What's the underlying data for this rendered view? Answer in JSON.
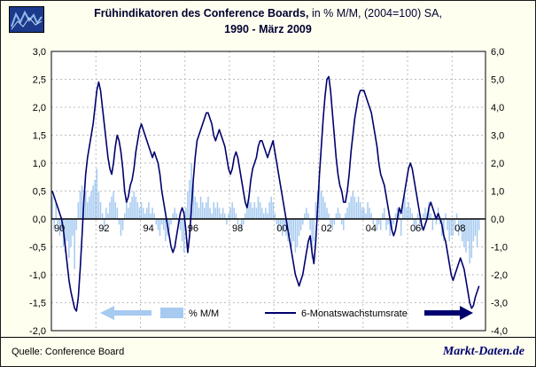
{
  "title": {
    "part1_bold": "Frühindikatoren des Conference Boards,",
    "part1_rest": " in % M/M, (2004=100) SA,",
    "line2": "1990 - März 2009"
  },
  "footer": {
    "source_label": "Quelle: Conference Board",
    "brand": "Markt-Daten.de"
  },
  "logo": {
    "icon": "line-chart-logo-icon"
  },
  "colors": {
    "background": "#fffff0",
    "plot_background": "#ffffff",
    "bar": "#a6caf0",
    "line": "#00006e",
    "grid": "#bcbcbc",
    "zero_line": "#000000",
    "axis_text": "#000000",
    "brand_text": "#00006e"
  },
  "chart_data": {
    "type": "combo",
    "title": "Frühindikatoren des Conference Boards, in % M/M, (2004=100) SA, 1990 - März 2009",
    "start": "1990-01",
    "end": "2009-03",
    "frequency": "monthly",
    "grid": true,
    "legend_position": "bottom-inside",
    "left_axis": {
      "min": -2.0,
      "max": 3.0,
      "tick_values": [
        3.0,
        2.5,
        2.0,
        1.5,
        1.0,
        0.5,
        0.0,
        -0.5,
        -1.0,
        -1.5,
        -2.0
      ],
      "tick_labels": [
        "3,0",
        "2,5",
        "2,0",
        "1,5",
        "1,0",
        "0,5",
        "0,0",
        "-0,5",
        "-1,0",
        "-1,5",
        "-2,0"
      ]
    },
    "right_axis": {
      "min": -4.0,
      "max": 6.0,
      "tick_values": [
        6.0,
        5.0,
        4.0,
        3.0,
        2.0,
        1.0,
        0.0,
        -1.0,
        -2.0,
        -3.0,
        -4.0
      ],
      "tick_labels": [
        "6,0",
        "5,0",
        "4,0",
        "3,0",
        "2,0",
        "1,0",
        "0,0",
        "-1,0",
        "-2,0",
        "-3,0",
        "-4,0"
      ]
    },
    "x_tick_labels": [
      "90",
      "92",
      "94",
      "96",
      "98",
      "00",
      "02",
      "04",
      "06",
      "08"
    ],
    "x_tick_years": [
      1990,
      1992,
      1994,
      1996,
      1998,
      2000,
      2002,
      2004,
      2006,
      2008
    ],
    "series": [
      {
        "name": "% M/M",
        "type": "bar",
        "axis": "left",
        "values": [
          0.4,
          -0.2,
          0.3,
          -0.1,
          -0.3,
          -0.2,
          -0.5,
          -0.6,
          -0.4,
          -0.7,
          -0.5,
          -0.3,
          -0.9,
          -0.2,
          0.3,
          0.5,
          0.6,
          0.4,
          0.5,
          0.3,
          0.4,
          0.5,
          0.6,
          0.7,
          0.9,
          0.5,
          0.3,
          0.1,
          -0.2,
          0.2,
          0.1,
          0.3,
          0.4,
          0.5,
          0.3,
          0.2,
          -0.1,
          -0.3,
          -0.2,
          0.1,
          0.3,
          0.2,
          0.3,
          0.4,
          0.5,
          0.4,
          0.3,
          0.2,
          0.3,
          0.2,
          0.1,
          0.2,
          0.3,
          0.1,
          0.2,
          0.1,
          -0.1,
          -0.2,
          -0.3,
          -0.1,
          -0.2,
          -0.4,
          -0.3,
          -0.2,
          -0.1,
          0.1,
          0.2,
          0.1,
          -0.1,
          -0.2,
          -0.4,
          -0.6,
          0.2,
          0.5,
          0.7,
          1.0,
          0.6,
          0.4,
          0.3,
          0.2,
          0.4,
          0.3,
          0.2,
          0.3,
          0.4,
          0.2,
          0.1,
          0.3,
          0.2,
          0.3,
          0.2,
          0.1,
          0.2,
          0.1,
          -0.1,
          0.1,
          0.2,
          0.3,
          0.2,
          0.1,
          -0.1,
          0.0,
          -0.2,
          -0.1,
          0.1,
          0.2,
          0.4,
          0.3,
          0.2,
          0.3,
          0.2,
          0.4,
          0.3,
          0.2,
          0.1,
          0.2,
          0.1,
          0.3,
          0.4,
          0.3,
          0.1,
          -0.1,
          -0.2,
          -0.1,
          -0.3,
          -0.2,
          -0.3,
          -0.4,
          -0.3,
          -0.5,
          -0.4,
          -0.6,
          -0.5,
          -0.3,
          -0.2,
          -0.1,
          0.1,
          0.2,
          0.1,
          -0.2,
          -0.7,
          -0.4,
          0.3,
          0.5,
          0.6,
          0.5,
          0.4,
          0.3,
          0.2,
          0.1,
          -0.1,
          -0.2,
          -0.1,
          0.1,
          0.2,
          0.1,
          -0.1,
          -0.2,
          0.1,
          0.2,
          0.3,
          0.4,
          0.5,
          0.4,
          0.3,
          0.4,
          0.3,
          0.2,
          0.2,
          0.1,
          0.3,
          0.2,
          0.1,
          -0.1,
          0.0,
          -0.2,
          -0.1,
          -0.2,
          0.1,
          0.2,
          -0.2,
          -0.1,
          -0.3,
          -0.2,
          -0.1,
          0.1,
          0.2,
          0.1,
          -0.3,
          0.3,
          0.4,
          0.2,
          0.3,
          0.2,
          0.1,
          -0.1,
          -0.2,
          0.1,
          -0.1,
          -0.2,
          0.1,
          0.2,
          0.1,
          0.3,
          0.1,
          -0.2,
          0.1,
          -0.1,
          0.2,
          -0.1,
          -0.3,
          -0.4,
          0.1,
          -0.2,
          -0.4,
          -0.3,
          -0.3,
          -0.2,
          0.1,
          -0.3,
          -0.2,
          -0.4,
          -0.5,
          -0.6,
          -0.4,
          -0.8,
          -0.7,
          -0.4,
          -0.3,
          -0.5,
          -0.2
        ]
      },
      {
        "name": "6-Monatswachstumsrate",
        "type": "line",
        "axis": "right",
        "values": [
          1.0,
          0.8,
          0.6,
          0.4,
          0.2,
          0.0,
          -0.4,
          -1.0,
          -1.6,
          -2.2,
          -2.6,
          -2.9,
          -3.2,
          -3.3,
          -2.8,
          -1.8,
          -0.6,
          0.6,
          1.6,
          2.2,
          2.6,
          3.0,
          3.4,
          4.0,
          4.6,
          4.9,
          4.6,
          4.0,
          3.4,
          2.8,
          2.2,
          1.8,
          1.6,
          2.0,
          2.6,
          3.0,
          2.8,
          2.4,
          1.8,
          1.0,
          0.6,
          0.8,
          1.2,
          1.4,
          1.8,
          2.4,
          2.8,
          3.2,
          3.4,
          3.2,
          3.0,
          2.8,
          2.6,
          2.4,
          2.2,
          2.4,
          2.2,
          2.0,
          1.6,
          1.0,
          0.6,
          0.2,
          -0.2,
          -0.6,
          -1.0,
          -1.2,
          -1.0,
          -0.6,
          -0.2,
          0.2,
          0.4,
          0.2,
          -0.4,
          -1.2,
          -0.6,
          0.4,
          1.4,
          2.2,
          2.8,
          3.0,
          3.2,
          3.4,
          3.6,
          3.8,
          3.8,
          3.6,
          3.4,
          3.0,
          2.8,
          3.0,
          3.2,
          3.0,
          2.8,
          2.6,
          2.2,
          1.8,
          1.6,
          1.8,
          2.2,
          2.4,
          2.2,
          1.8,
          1.4,
          1.0,
          0.6,
          0.4,
          0.8,
          1.4,
          1.8,
          2.0,
          2.2,
          2.6,
          2.8,
          2.8,
          2.6,
          2.4,
          2.2,
          2.4,
          2.6,
          2.8,
          2.4,
          2.0,
          1.6,
          1.2,
          0.8,
          0.4,
          0.0,
          -0.4,
          -0.8,
          -1.2,
          -1.6,
          -2.0,
          -2.2,
          -2.4,
          -2.2,
          -2.0,
          -1.6,
          -1.2,
          -0.8,
          -0.6,
          -1.2,
          -1.6,
          -0.8,
          0.4,
          1.6,
          2.6,
          3.6,
          4.4,
          5.0,
          5.1,
          4.6,
          3.8,
          3.0,
          2.2,
          1.6,
          1.2,
          1.0,
          0.6,
          0.6,
          1.0,
          1.6,
          2.4,
          3.0,
          3.6,
          4.0,
          4.4,
          4.6,
          4.6,
          4.6,
          4.4,
          4.2,
          4.0,
          3.8,
          3.4,
          3.0,
          2.6,
          2.0,
          1.6,
          1.4,
          1.2,
          0.8,
          0.4,
          0.0,
          -0.4,
          -0.6,
          -0.4,
          0.0,
          0.4,
          0.2,
          0.6,
          1.0,
          1.4,
          1.8,
          2.0,
          1.8,
          1.4,
          1.0,
          0.6,
          0.2,
          -0.2,
          -0.4,
          -0.2,
          0.0,
          0.4,
          0.6,
          0.4,
          0.2,
          0.0,
          0.2,
          0.0,
          -0.2,
          -0.6,
          -0.8,
          -1.2,
          -1.6,
          -2.0,
          -2.2,
          -2.0,
          -1.8,
          -1.6,
          -1.4,
          -1.6,
          -1.8,
          -2.2,
          -2.6,
          -3.0,
          -3.2,
          -3.1,
          -2.8,
          -2.6,
          -2.4
        ]
      }
    ]
  }
}
